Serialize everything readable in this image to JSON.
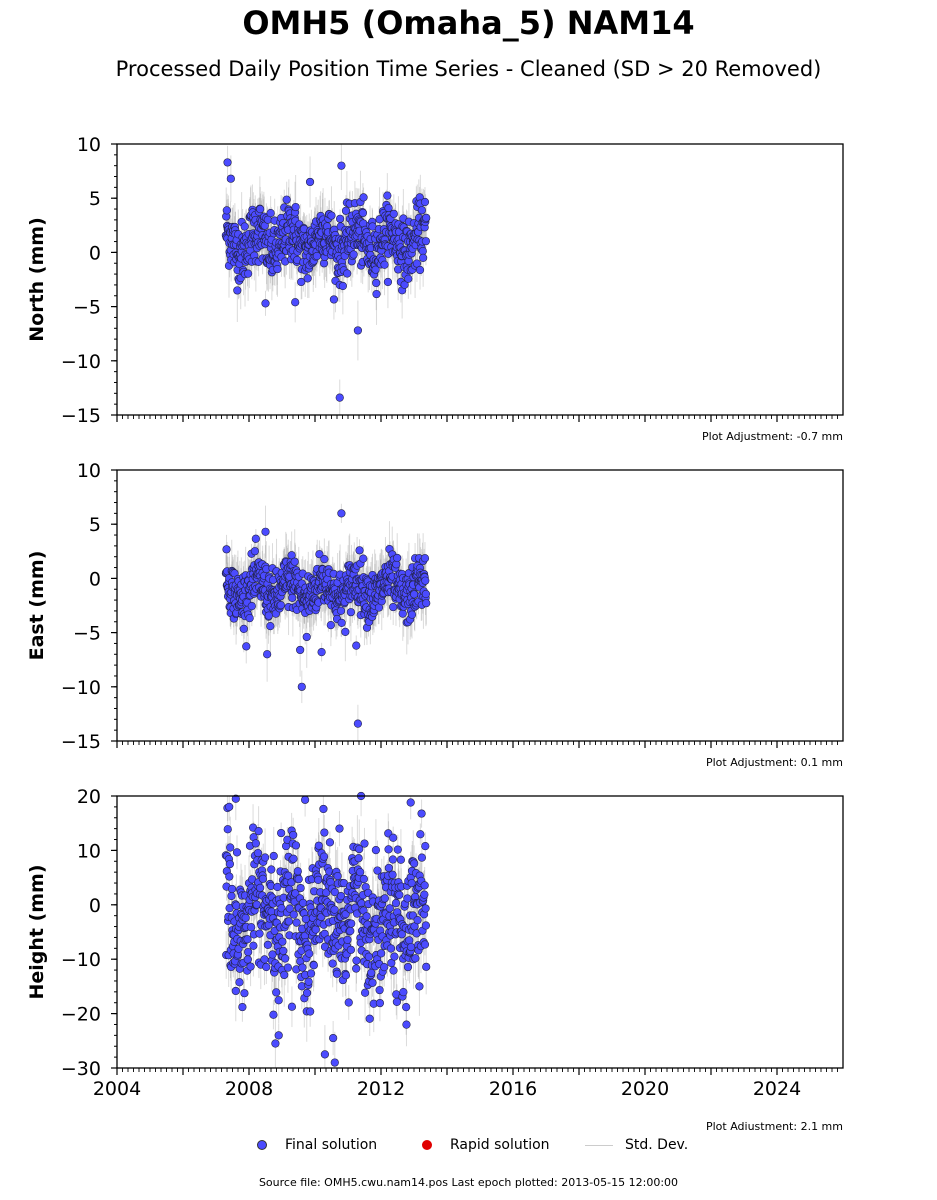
{
  "title": "OMH5 (Omaha_5) NAM14",
  "subtitle": "Processed Daily Position Time Series - Cleaned (SD > 20 Removed)",
  "chart_data": [
    {
      "type": "scatter",
      "ylabel": "North (mm)",
      "ylim": [
        -15,
        10
      ],
      "yticks": [
        10,
        5,
        0,
        -5,
        -10,
        -15
      ],
      "xlim": [
        2004,
        2026
      ],
      "adjustment": "Plot Adjustment: -0.7 mm",
      "x_range": [
        2007.3,
        2013.37
      ],
      "series": [
        {
          "name": "Final solution",
          "color": "#4b4bff",
          "typical_band": [
            -2.5,
            4.5
          ],
          "outliers": [
            [
              2007.35,
              8.3
            ],
            [
              2007.45,
              6.8
            ],
            [
              2008.5,
              -4.7
            ],
            [
              2009.4,
              -4.6
            ],
            [
              2010.8,
              8.0
            ],
            [
              2010.75,
              -13.4
            ],
            [
              2011.3,
              -7.2
            ],
            [
              2009.85,
              6.5
            ]
          ]
        }
      ]
    },
    {
      "type": "scatter",
      "ylabel": "East (mm)",
      "ylim": [
        -15,
        10
      ],
      "yticks": [
        10,
        5,
        0,
        -5,
        -10,
        -15
      ],
      "xlim": [
        2004,
        2026
      ],
      "adjustment": "Plot Adjustment: 0.1 mm",
      "x_range": [
        2007.3,
        2013.37
      ],
      "series": [
        {
          "name": "Final solution",
          "color": "#4b4bff",
          "typical_band": [
            -4,
            2
          ],
          "outliers": [
            [
              2008.5,
              4.3
            ],
            [
              2008.55,
              -7.0
            ],
            [
              2009.6,
              -10.0
            ],
            [
              2009.55,
              -6.6
            ],
            [
              2010.2,
              -6.8
            ],
            [
              2010.8,
              6.0
            ],
            [
              2011.3,
              -13.4
            ],
            [
              2011.25,
              -6.2
            ],
            [
              2009.75,
              -5.4
            ]
          ]
        }
      ]
    },
    {
      "type": "scatter",
      "ylabel": "Height (mm)",
      "ylim": [
        -30,
        20
      ],
      "yticks": [
        20,
        10,
        0,
        -10,
        -20,
        -30
      ],
      "xlim": [
        2004,
        2026
      ],
      "xticks": [
        "2004",
        "2008",
        "2012",
        "2016",
        "2020",
        "2024"
      ],
      "adjustment": "Plot Adjustment: 2.1 mm",
      "x_range": [
        2007.3,
        2013.37
      ],
      "series": [
        {
          "name": "Final solution",
          "color": "#4b4bff",
          "typical_band": [
            -18,
            14
          ],
          "outliers": [
            [
              2007.4,
              18.0
            ],
            [
              2007.6,
              19.5
            ],
            [
              2009.7,
              19.3
            ],
            [
              2012.9,
              18.8
            ],
            [
              2008.8,
              -25.5
            ],
            [
              2008.9,
              -24.0
            ],
            [
              2010.3,
              -27.5
            ],
            [
              2010.6,
              -29.0
            ],
            [
              2010.55,
              -24.5
            ],
            [
              2007.8,
              -18.8
            ]
          ]
        }
      ]
    }
  ],
  "legend": {
    "final": "Final solution",
    "rapid": "Rapid solution",
    "std": "Std. Dev.",
    "final_color": "#4b4bff",
    "rapid_color": "#e00000",
    "std_color": "#cccccc"
  },
  "footer": "Source file: OMH5.cwu.nam14.pos  Last epoch plotted: 2013-05-15 12:00:00"
}
